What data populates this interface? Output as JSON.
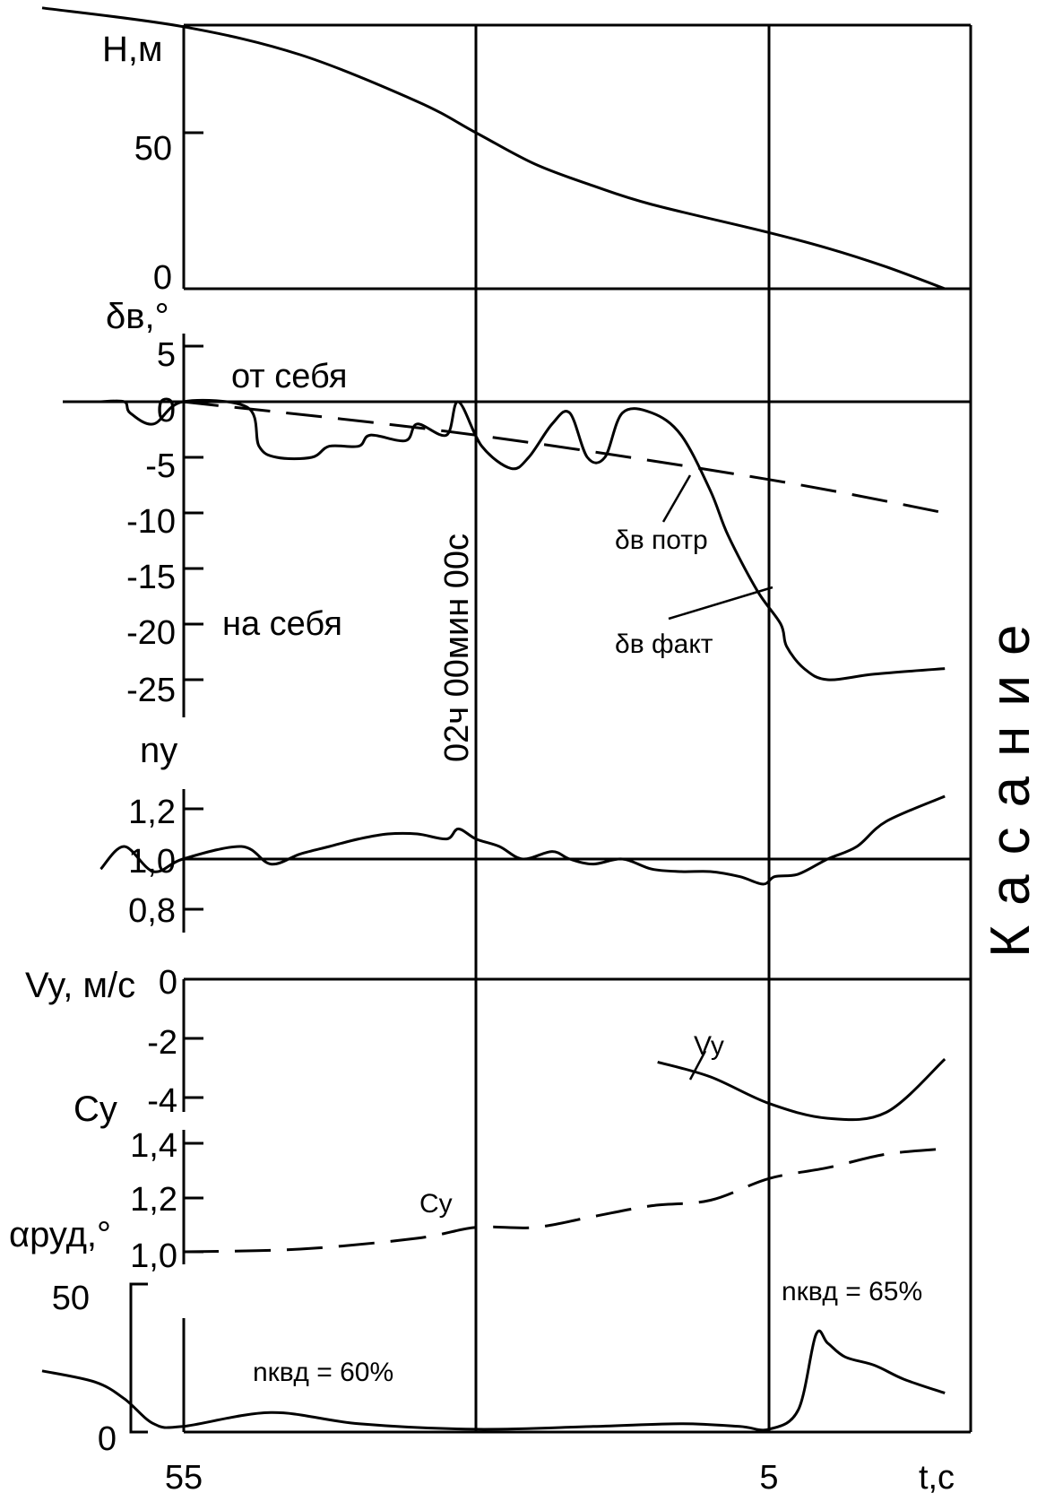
{
  "chart_data": [
    {
      "type": "line",
      "panel": "H",
      "ylabel": "Н,м",
      "yticks": [
        "50",
        "0"
      ],
      "ylim": [
        0,
        100
      ],
      "series": [
        {
          "x": [
            -7.4,
            -5.0,
            -3.0,
            -1.0,
            0.0,
            1.0,
            2.0,
            3.0,
            5.0,
            6.0,
            7.0,
            8.0
          ],
          "y": [
            90,
            84,
            75,
            60,
            50,
            40,
            33,
            27,
            18,
            13,
            7,
            0
          ]
        }
      ]
    },
    {
      "type": "line",
      "panel": "delta_v",
      "ylabel": "δв,°",
      "yticks": [
        "5",
        "0",
        "-5",
        "-10",
        "-15",
        "-20",
        "-25"
      ],
      "ylim": [
        -26,
        5
      ],
      "annotations": [
        "от себя",
        "на себя",
        "02ч 00мин 00с"
      ],
      "series": [
        {
          "name": "δв потр",
          "style": "dashed",
          "x": [
            -5.0,
            0.0,
            5.0,
            8.0
          ],
          "y": [
            0,
            -3,
            -7,
            -10
          ]
        },
        {
          "name": "δв факт",
          "style": "solid",
          "x": [
            -6.4,
            -6.0,
            -5.9,
            -5.5,
            -5.0,
            -3.9,
            -3.7,
            -3.4,
            -2.8,
            -2.5,
            -2.0,
            -1.8,
            -1.2,
            -1.0,
            -0.5,
            -0.3,
            0.1,
            0.6,
            0.9,
            1.3,
            1.6,
            1.9,
            2.2,
            2.5,
            3.0,
            3.5,
            4.0,
            4.3,
            4.8,
            5.2,
            5.3,
            5.6,
            6.0,
            6.8,
            8.0
          ],
          "y": [
            0,
            0,
            -1,
            -2,
            0,
            -0.5,
            -4,
            -5,
            -5,
            -4,
            -4,
            -3,
            -3.5,
            -2,
            -3,
            0,
            -4,
            -6,
            -5,
            -2,
            -1,
            -5,
            -5,
            -1,
            -1,
            -3,
            -8,
            -12,
            -17,
            -20,
            -22,
            -24,
            -25,
            -24.5,
            -24
          ]
        }
      ]
    },
    {
      "type": "line",
      "panel": "ny",
      "ylabel": "ny",
      "yticks": [
        "1,2",
        "1,0",
        "0,8"
      ],
      "ylim": [
        0.75,
        1.3
      ],
      "series": [
        {
          "x": [
            -6.4,
            -6.0,
            -5.5,
            -5.0,
            -4.0,
            -3.5,
            -3.0,
            -2.5,
            -2.0,
            -1.5,
            -1.0,
            -0.5,
            -0.3,
            0.0,
            0.4,
            0.8,
            1.3,
            1.6,
            2.0,
            2.5,
            3.0,
            3.5,
            4.0,
            4.5,
            4.9,
            5.1,
            5.5,
            6.0,
            6.5,
            7.0,
            8.0
          ],
          "y": [
            0.96,
            1.05,
            0.95,
            1.0,
            1.05,
            0.98,
            1.02,
            1.05,
            1.08,
            1.1,
            1.1,
            1.08,
            1.12,
            1.08,
            1.05,
            1.0,
            1.03,
            1.0,
            0.98,
            1.0,
            0.96,
            0.95,
            0.95,
            0.93,
            0.9,
            0.93,
            0.94,
            1.0,
            1.05,
            1.15,
            1.25
          ]
        }
      ]
    },
    {
      "type": "line",
      "panel": "Vy",
      "ylabel": "Vy, м/с",
      "yticks": [
        "0",
        "-2",
        "-4"
      ],
      "ylim": [
        -5,
        0
      ],
      "annotations": [
        "Vy"
      ],
      "series": [
        {
          "name": "Vy",
          "x": [
            3.1,
            4.0,
            5.0,
            6.0,
            7.0,
            8.0
          ],
          "y": [
            -2.8,
            -3.3,
            -4.2,
            -4.7,
            -4.5,
            -2.7
          ]
        }
      ]
    },
    {
      "type": "line",
      "panel": "Cy",
      "ylabel": "Cy",
      "yticks": [
        "1,4",
        "1,2",
        "1,0"
      ],
      "ylim": [
        1.0,
        1.4
      ],
      "annotations": [
        "Cy"
      ],
      "series": [
        {
          "name": "Cy",
          "style": "dashed",
          "x": [
            -5.0,
            -3.0,
            -1.0,
            0.0,
            1.0,
            2.0,
            3.0,
            4.0,
            5.0,
            6.0,
            7.0,
            8.0
          ],
          "y": [
            1.0,
            1.01,
            1.05,
            1.09,
            1.09,
            1.13,
            1.17,
            1.19,
            1.27,
            1.31,
            1.36,
            1.38
          ]
        }
      ]
    },
    {
      "type": "line",
      "panel": "alpha_rud",
      "ylabel": "αруд,°",
      "yticks": [
        "50",
        "0"
      ],
      "ylim": [
        0,
        50
      ],
      "xlabel": "t,c",
      "xticks": [
        "55",
        "5"
      ],
      "annotations": [
        "nквд = 60%",
        "nквд = 65%"
      ],
      "series": [
        {
          "x": [
            -7.4,
            -6.5,
            -6.0,
            -5.5,
            -5.0,
            -3.5,
            -2.0,
            0.0,
            2.0,
            3.5,
            4.5,
            5.0,
            5.5,
            5.8,
            6.0,
            6.3,
            6.8,
            7.3,
            8.0
          ],
          "y": [
            22,
            18,
            12,
            3,
            2,
            7,
            3,
            1,
            2,
            3,
            2,
            1,
            8,
            35,
            32,
            27,
            24,
            19,
            14
          ]
        }
      ]
    }
  ],
  "side_label": "Касание"
}
